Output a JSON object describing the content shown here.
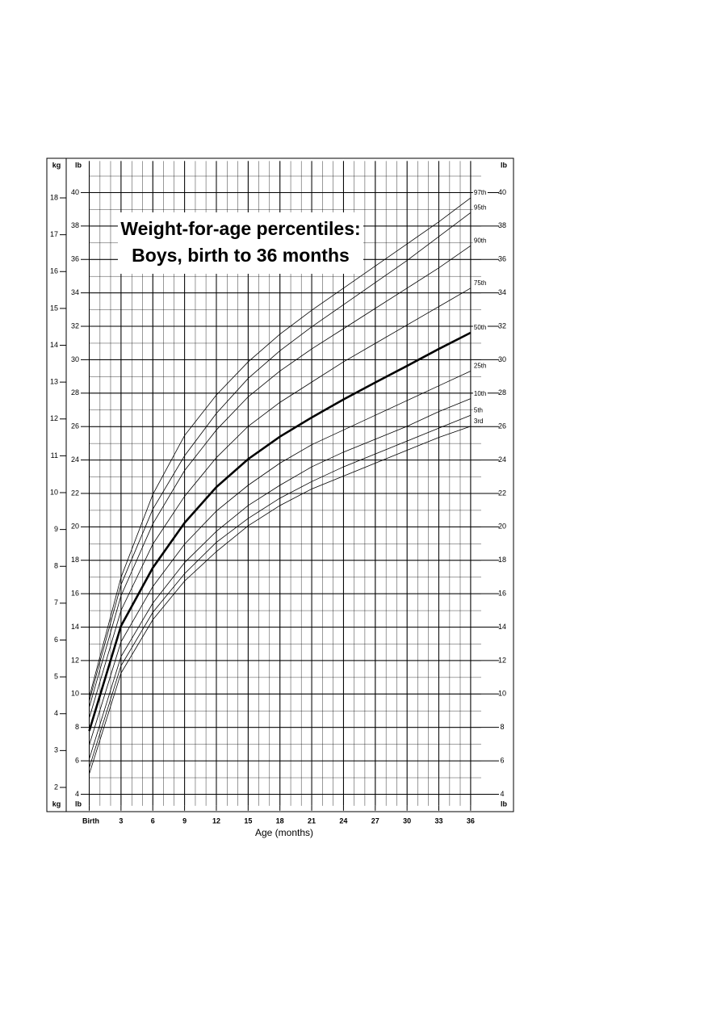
{
  "chart_data": {
    "type": "line",
    "title": [
      "Weight-for-age percentiles:",
      "Boys, birth to 36 months"
    ],
    "x_label": "Age (months)",
    "y_unit": "kg",
    "y2_unit": "lb",
    "x": [
      0,
      3,
      6,
      9,
      12,
      15,
      18,
      21,
      24,
      27,
      30,
      33,
      36
    ],
    "xlim": [
      0,
      37
    ],
    "xticks": [
      {
        "value": 0,
        "label": "Birth"
      },
      3,
      6,
      9,
      12,
      15,
      18,
      21,
      24,
      27,
      30,
      33,
      36
    ],
    "ylim": [
      1.5,
      19
    ],
    "yticks": [
      2,
      3,
      4,
      5,
      6,
      7,
      8,
      9,
      10,
      11,
      12,
      13,
      14,
      15,
      16,
      17,
      18
    ],
    "y2lim": [
      3.307,
      41.888
    ],
    "y2ticks": [
      4,
      6,
      8,
      10,
      12,
      14,
      16,
      18,
      20,
      22,
      24,
      26,
      28,
      30,
      32,
      34,
      36,
      38,
      40
    ],
    "grid": true,
    "series": [
      {
        "name": "97th",
        "color": "#000000",
        "line_width": 0.8,
        "values": [
          4.45,
          7.7,
          9.95,
          11.55,
          12.65,
          13.55,
          14.3,
          14.95,
          15.55,
          16.15,
          16.75,
          17.35,
          18.0
        ]
      },
      {
        "name": "95th",
        "color": "#000000",
        "line_width": 0.8,
        "values": [
          4.34,
          7.5,
          9.55,
          11.0,
          12.15,
          13.1,
          13.85,
          14.5,
          15.1,
          15.7,
          16.3,
          16.95,
          17.6
        ]
      },
      {
        "name": "90th",
        "color": "#000000",
        "line_width": 0.8,
        "values": [
          4.17,
          7.2,
          9.15,
          10.6,
          11.7,
          12.6,
          13.3,
          13.9,
          14.45,
          15.0,
          15.55,
          16.1,
          16.7
        ]
      },
      {
        "name": "75th",
        "color": "#000000",
        "line_width": 0.8,
        "values": [
          3.88,
          6.8,
          8.6,
          9.9,
          10.95,
          11.8,
          12.45,
          13.0,
          13.55,
          14.05,
          14.55,
          15.05,
          15.55
        ]
      },
      {
        "name": "50th",
        "color": "#000000",
        "line_width": 2.6,
        "values": [
          3.53,
          6.38,
          7.96,
          9.18,
          10.15,
          10.91,
          11.52,
          12.04,
          12.53,
          12.99,
          13.44,
          13.9,
          14.34
        ]
      },
      {
        "name": "25th",
        "color": "#000000",
        "line_width": 0.8,
        "values": [
          3.15,
          5.95,
          7.45,
          8.6,
          9.5,
          10.2,
          10.8,
          11.3,
          11.7,
          12.1,
          12.5,
          12.9,
          13.3
        ]
      },
      {
        "name": "10th",
        "color": "#000000",
        "line_width": 0.8,
        "values": [
          2.77,
          5.55,
          7.0,
          8.1,
          8.95,
          9.65,
          10.2,
          10.7,
          11.1,
          11.45,
          11.8,
          12.2,
          12.55
        ]
      },
      {
        "name": "5th",
        "color": "#000000",
        "line_width": 0.8,
        "values": [
          2.53,
          5.3,
          6.75,
          7.8,
          8.65,
          9.3,
          9.85,
          10.3,
          10.7,
          11.05,
          11.4,
          11.75,
          12.1
        ]
      },
      {
        "name": "3rd",
        "color": "#000000",
        "line_width": 0.8,
        "values": [
          2.36,
          5.1,
          6.55,
          7.6,
          8.4,
          9.1,
          9.65,
          10.1,
          10.45,
          10.8,
          11.15,
          11.5,
          11.8
        ]
      }
    ]
  }
}
